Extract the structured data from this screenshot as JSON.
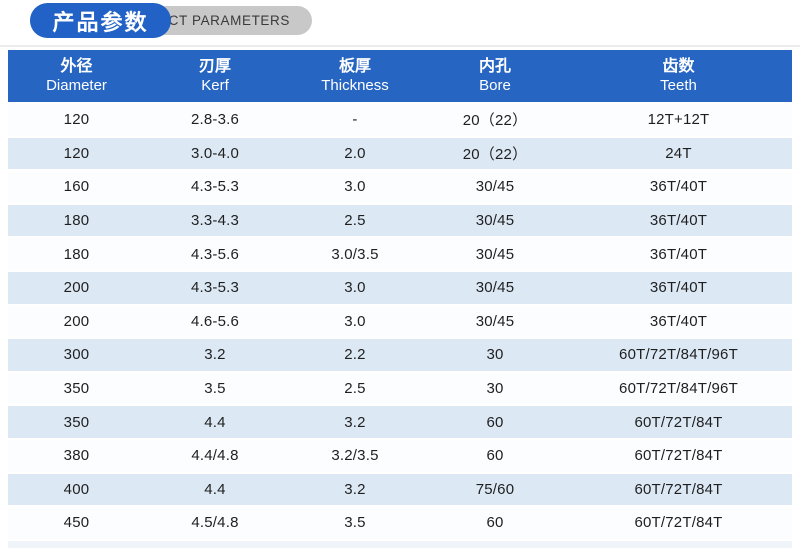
{
  "page": {
    "title_badge": "产品参数",
    "title_pill": "PRODUCT PARAMETERS"
  },
  "colors": {
    "badge_blue": "#2262c6",
    "pill_gray": "#c8c8c8",
    "table_header_blue": "#2765c3",
    "row_light_blue": "#dce9f5",
    "row_white": "#fcfdff"
  },
  "table": {
    "columns": [
      {
        "zh": "外径",
        "en": "Diameter"
      },
      {
        "zh": "刃厚",
        "en": "Kerf"
      },
      {
        "zh": "板厚",
        "en": "Thickness"
      },
      {
        "zh": "内孔",
        "en": "Bore"
      },
      {
        "zh": "齿数",
        "en": "Teeth"
      }
    ],
    "rows": [
      [
        "120",
        "2.8-3.6",
        "-",
        "20（22）",
        "12T+12T"
      ],
      [
        "120",
        "3.0-4.0",
        "2.0",
        "20（22）",
        "24T"
      ],
      [
        "160",
        "4.3-5.3",
        "3.0",
        "30/45",
        "36T/40T"
      ],
      [
        "180",
        "3.3-4.3",
        "2.5",
        "30/45",
        "36T/40T"
      ],
      [
        "180",
        "4.3-5.6",
        "3.0/3.5",
        "30/45",
        "36T/40T"
      ],
      [
        "200",
        "4.3-5.3",
        "3.0",
        "30/45",
        "36T/40T"
      ],
      [
        "200",
        "4.6-5.6",
        "3.0",
        "30/45",
        "36T/40T"
      ],
      [
        "300",
        "3.2",
        "2.2",
        "30",
        "60T/72T/84T/96T"
      ],
      [
        "350",
        "3.5",
        "2.5",
        "30",
        "60T/72T/84T/96T"
      ],
      [
        "350",
        "4.4",
        "3.2",
        "60",
        "60T/72T/84T"
      ],
      [
        "380",
        "4.4/4.8",
        "3.2/3.5",
        "60",
        "60T/72T/84T"
      ],
      [
        "400",
        "4.4",
        "3.2",
        "75/60",
        "60T/72T/84T"
      ],
      [
        "450",
        "4.5/4.8",
        "3.5",
        "60",
        "60T/72T/84T"
      ]
    ]
  }
}
